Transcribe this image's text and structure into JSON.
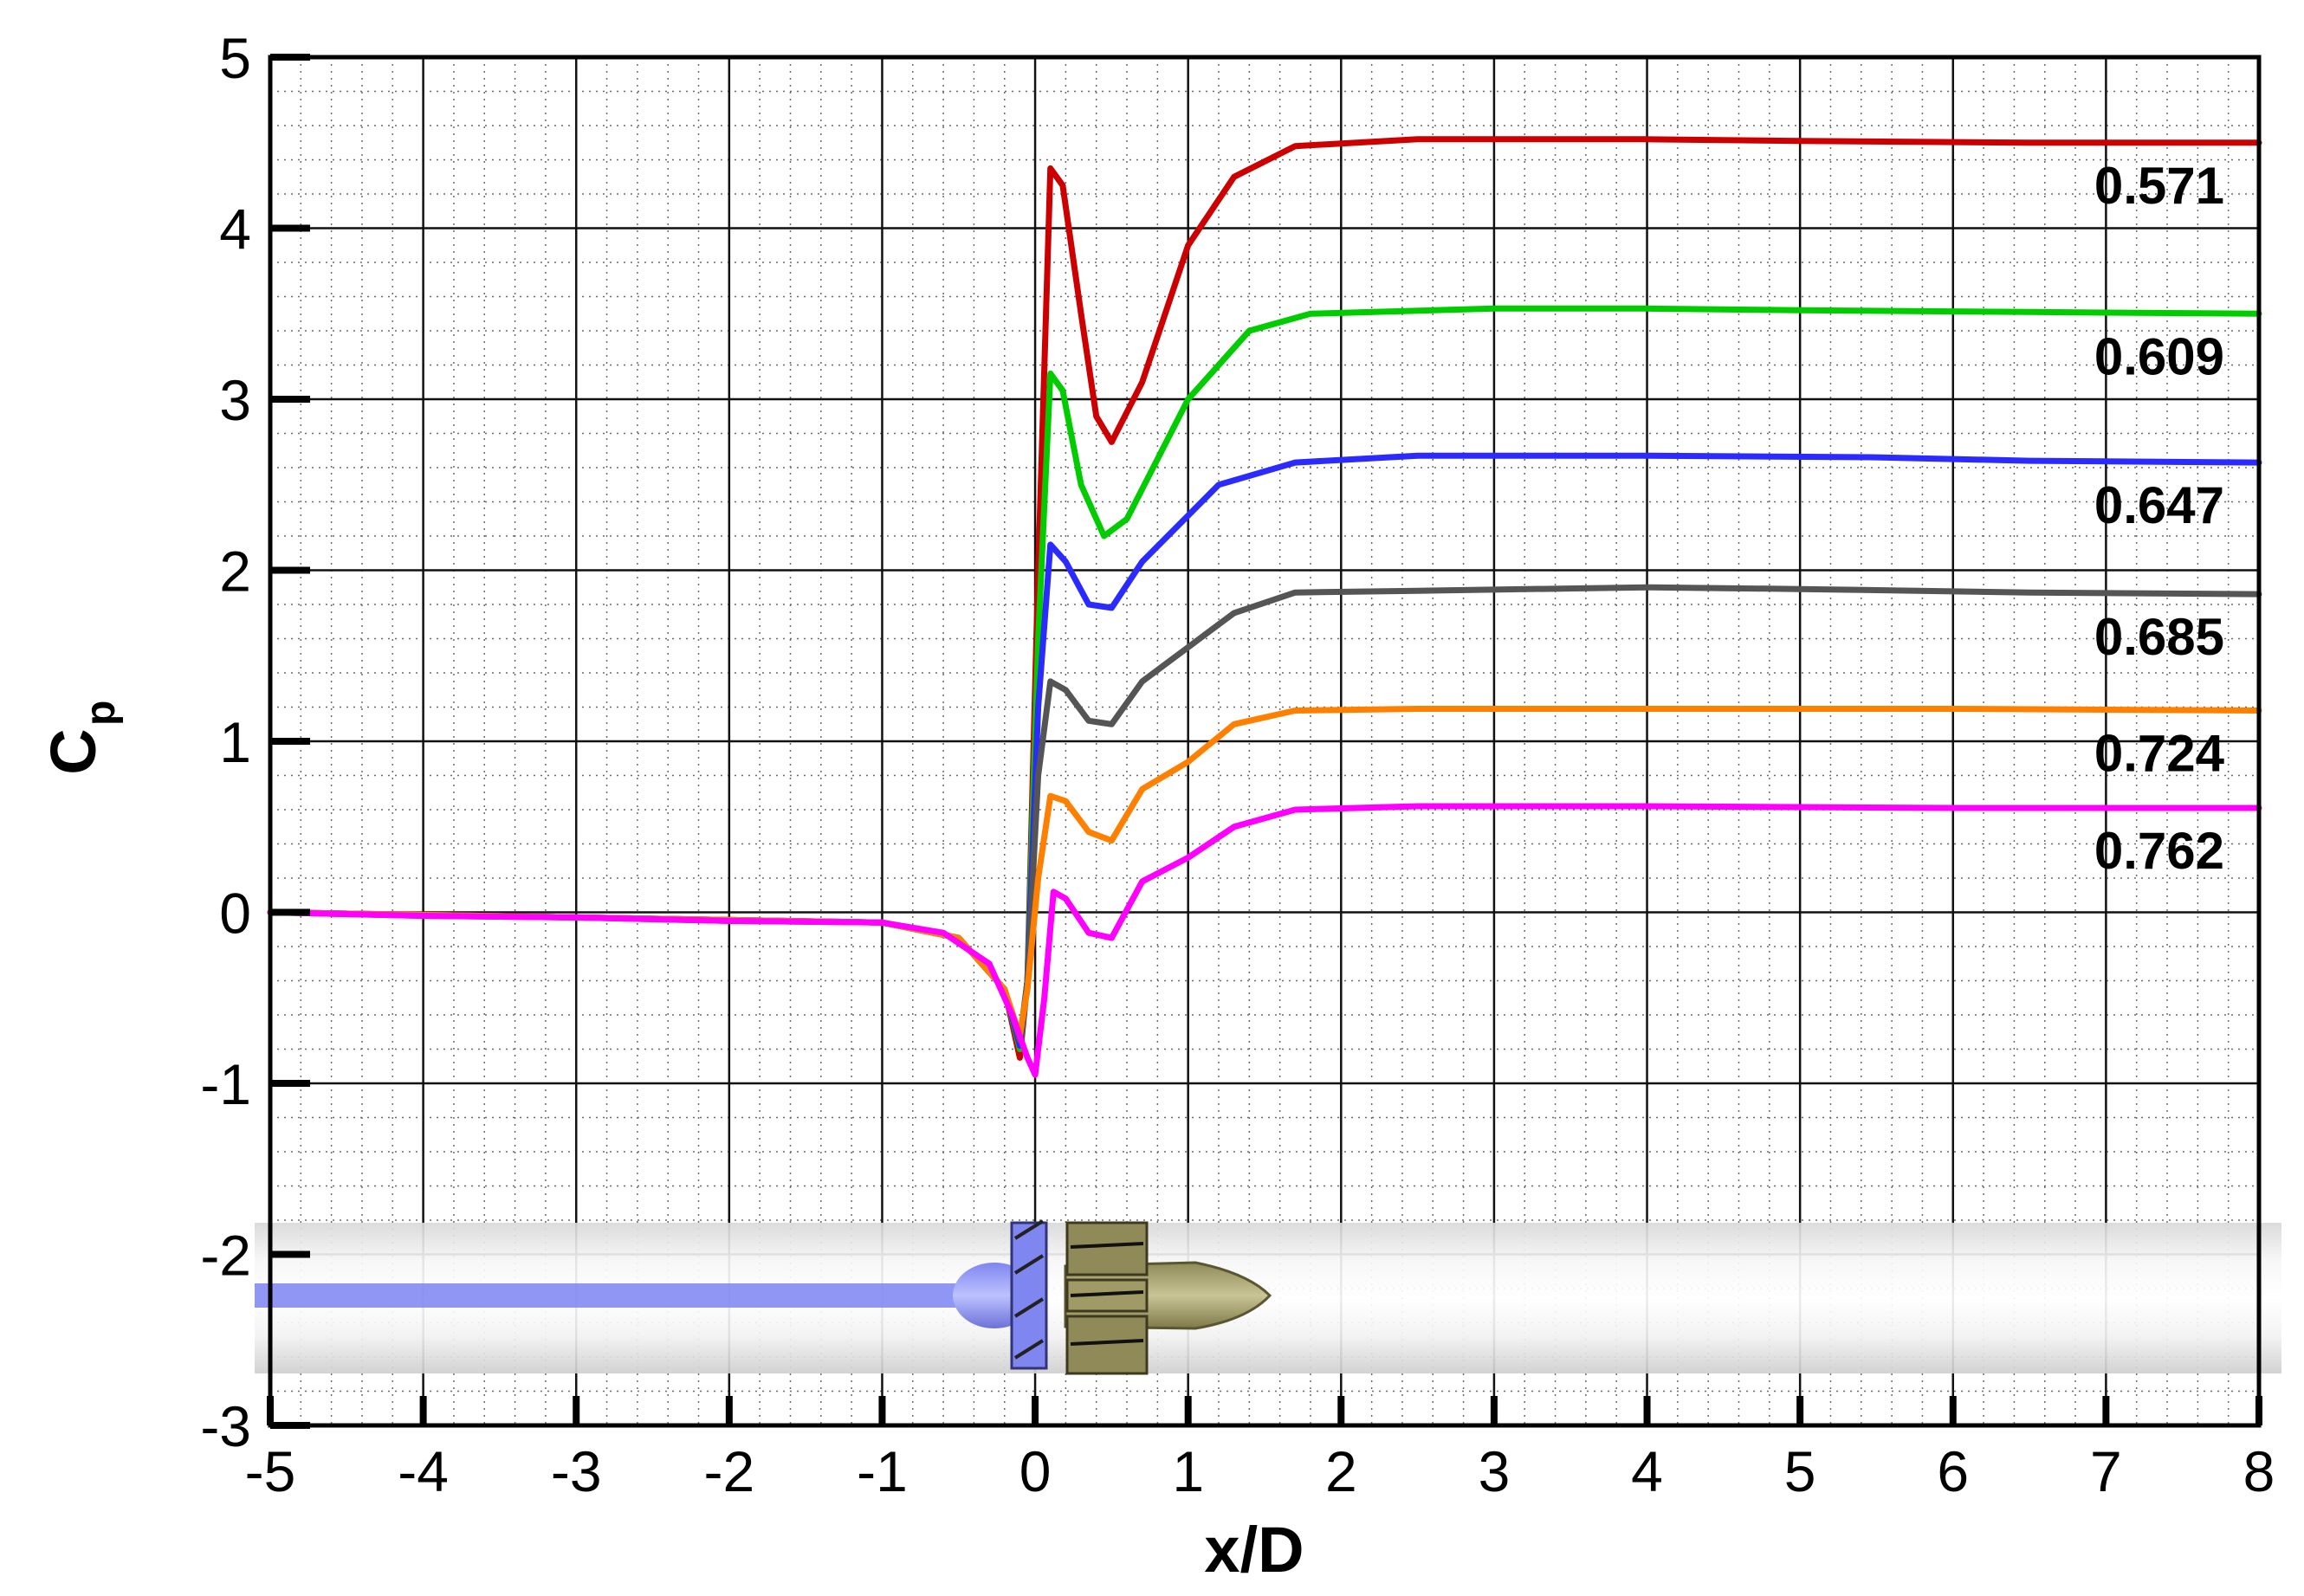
{
  "chart_data": {
    "type": "line",
    "title": "",
    "xlabel": "x/D",
    "ylabel": {
      "main": "C",
      "sub": "p"
    },
    "xlim": [
      -5,
      8
    ],
    "ylim": [
      -3,
      5
    ],
    "xticks": [
      "-5",
      "-4",
      "-3",
      "-2",
      "-1",
      "0",
      "1",
      "2",
      "3",
      "4",
      "5",
      "6",
      "7",
      "8"
    ],
    "yticks": [
      "-3",
      "-2",
      "-1",
      "0",
      "1",
      "2",
      "3",
      "4",
      "5"
    ],
    "grid": true,
    "legend": "inline labels at right end of each curve",
    "series": [
      {
        "name": "0.571",
        "color": "#cc0000",
        "points": [
          [
            -5,
            0
          ],
          [
            -4,
            -0.02
          ],
          [
            -3,
            -0.03
          ],
          [
            -2,
            -0.05
          ],
          [
            -1,
            -0.06
          ],
          [
            -0.5,
            -0.15
          ],
          [
            -0.2,
            -0.45
          ],
          [
            -0.1,
            -0.85
          ],
          [
            -0.05,
            -0.4
          ],
          [
            0.02,
            2.0
          ],
          [
            0.1,
            4.35
          ],
          [
            0.18,
            4.25
          ],
          [
            0.3,
            3.5
          ],
          [
            0.4,
            2.9
          ],
          [
            0.5,
            2.75
          ],
          [
            0.7,
            3.1
          ],
          [
            1.0,
            3.9
          ],
          [
            1.3,
            4.3
          ],
          [
            1.7,
            4.48
          ],
          [
            2.5,
            4.52
          ],
          [
            4,
            4.52
          ],
          [
            5,
            4.51
          ],
          [
            6.5,
            4.5
          ],
          [
            8,
            4.5
          ]
        ]
      },
      {
        "name": "0.609",
        "color": "#00cc00",
        "points": [
          [
            -5,
            0
          ],
          [
            -1,
            -0.06
          ],
          [
            -0.5,
            -0.15
          ],
          [
            -0.2,
            -0.45
          ],
          [
            -0.1,
            -0.8
          ],
          [
            -0.05,
            -0.4
          ],
          [
            0.02,
            1.6
          ],
          [
            0.1,
            3.15
          ],
          [
            0.18,
            3.05
          ],
          [
            0.3,
            2.5
          ],
          [
            0.45,
            2.2
          ],
          [
            0.6,
            2.3
          ],
          [
            1.0,
            3.0
          ],
          [
            1.4,
            3.4
          ],
          [
            1.8,
            3.5
          ],
          [
            3,
            3.53
          ],
          [
            4,
            3.53
          ],
          [
            5,
            3.52
          ],
          [
            6.5,
            3.51
          ],
          [
            8,
            3.5
          ]
        ]
      },
      {
        "name": "0.647",
        "color": "#2b2bff",
        "points": [
          [
            -5,
            0
          ],
          [
            -1,
            -0.06
          ],
          [
            -0.5,
            -0.15
          ],
          [
            -0.2,
            -0.45
          ],
          [
            -0.1,
            -0.78
          ],
          [
            -0.05,
            -0.4
          ],
          [
            0.02,
            1.2
          ],
          [
            0.1,
            2.15
          ],
          [
            0.2,
            2.05
          ],
          [
            0.35,
            1.8
          ],
          [
            0.5,
            1.78
          ],
          [
            0.7,
            2.05
          ],
          [
            1.2,
            2.5
          ],
          [
            1.7,
            2.63
          ],
          [
            2.5,
            2.67
          ],
          [
            4,
            2.67
          ],
          [
            5.5,
            2.66
          ],
          [
            6.5,
            2.64
          ],
          [
            8,
            2.63
          ]
        ]
      },
      {
        "name": "0.685",
        "color": "#555555",
        "points": [
          [
            -5,
            0
          ],
          [
            -1,
            -0.06
          ],
          [
            -0.5,
            -0.15
          ],
          [
            -0.2,
            -0.45
          ],
          [
            -0.1,
            -0.75
          ],
          [
            -0.05,
            -0.4
          ],
          [
            0.02,
            0.8
          ],
          [
            0.1,
            1.35
          ],
          [
            0.2,
            1.3
          ],
          [
            0.35,
            1.12
          ],
          [
            0.5,
            1.1
          ],
          [
            0.7,
            1.35
          ],
          [
            1.0,
            1.55
          ],
          [
            1.3,
            1.75
          ],
          [
            1.7,
            1.87
          ],
          [
            2.5,
            1.88
          ],
          [
            4,
            1.9
          ],
          [
            5,
            1.89
          ],
          [
            6.5,
            1.87
          ],
          [
            8,
            1.86
          ]
        ]
      },
      {
        "name": "0.724",
        "color": "#ff8000",
        "points": [
          [
            -5,
            0
          ],
          [
            -1,
            -0.06
          ],
          [
            -0.5,
            -0.15
          ],
          [
            -0.2,
            -0.45
          ],
          [
            -0.1,
            -0.72
          ],
          [
            -0.05,
            -0.45
          ],
          [
            0.02,
            0.2
          ],
          [
            0.1,
            0.68
          ],
          [
            0.2,
            0.65
          ],
          [
            0.35,
            0.47
          ],
          [
            0.5,
            0.42
          ],
          [
            0.7,
            0.72
          ],
          [
            1.0,
            0.88
          ],
          [
            1.3,
            1.1
          ],
          [
            1.7,
            1.18
          ],
          [
            2.5,
            1.19
          ],
          [
            4,
            1.19
          ],
          [
            6,
            1.19
          ],
          [
            8,
            1.18
          ]
        ]
      },
      {
        "name": "0.762",
        "color": "#ff00ff",
        "points": [
          [
            -5,
            0
          ],
          [
            -4,
            -0.02
          ],
          [
            -3,
            -0.03
          ],
          [
            -2,
            -0.05
          ],
          [
            -1,
            -0.06
          ],
          [
            -0.6,
            -0.12
          ],
          [
            -0.3,
            -0.3
          ],
          [
            -0.15,
            -0.6
          ],
          [
            -0.05,
            -0.85
          ],
          [
            0.0,
            -0.95
          ],
          [
            0.06,
            -0.5
          ],
          [
            0.12,
            0.12
          ],
          [
            0.2,
            0.08
          ],
          [
            0.35,
            -0.12
          ],
          [
            0.5,
            -0.15
          ],
          [
            0.7,
            0.18
          ],
          [
            1.0,
            0.32
          ],
          [
            1.3,
            0.5
          ],
          [
            1.7,
            0.6
          ],
          [
            2.5,
            0.62
          ],
          [
            4,
            0.62
          ],
          [
            6,
            0.61
          ],
          [
            8,
            0.61
          ]
        ]
      }
    ]
  }
}
